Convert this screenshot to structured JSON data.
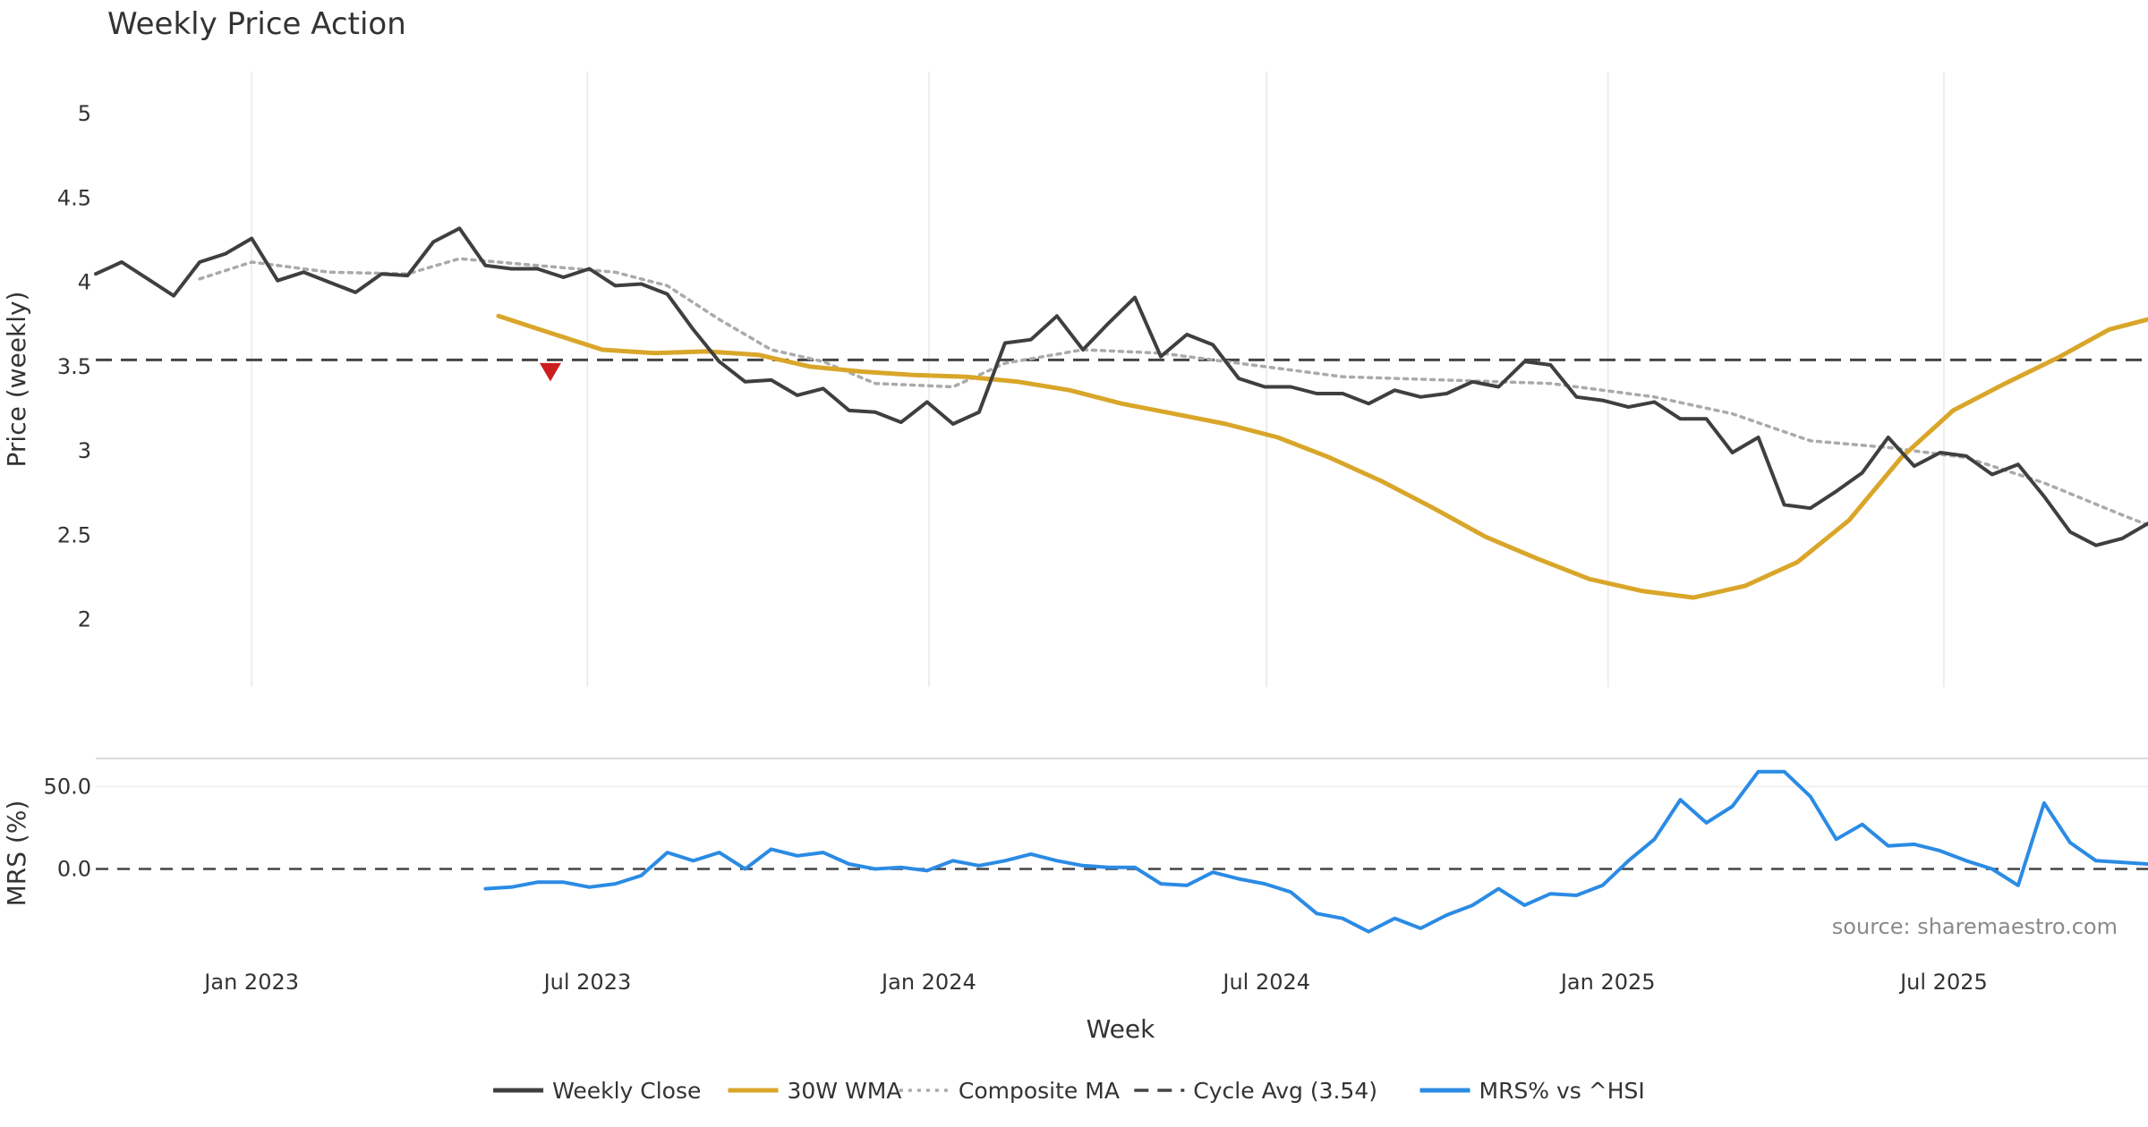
{
  "chart_data": {
    "type": "line",
    "title": "Weekly Price Action",
    "source": "source: sharemaestro.com",
    "xlabel": "Week",
    "x_ticks": [
      "Jan 2023",
      "Jul 2023",
      "Jan 2024",
      "Jul 2024",
      "Jan 2025",
      "Jul 2025"
    ],
    "x_tick_dates": [
      "2023-01-01",
      "2023-07-01",
      "2024-01-01",
      "2024-07-01",
      "2025-01-01",
      "2025-07-01"
    ],
    "x_range": [
      "2022-10-09",
      "2025-10-19"
    ],
    "grid": true,
    "legend_position": "bottom-center",
    "price_panel": {
      "ylabel": "Price (weekly)",
      "ylim": [
        1.6,
        5.25
      ],
      "y_ticks": [
        "2",
        "2.5",
        "3",
        "3.5",
        "4",
        "4.5",
        "5"
      ],
      "y_tick_values": [
        2,
        2.5,
        3,
        3.5,
        4,
        4.5,
        5
      ],
      "series": [
        {
          "name": "Weekly Close",
          "color": "#3f3f3f",
          "style": "solid",
          "points": [
            [
              "2022-10-09",
              4.05
            ],
            [
              "2022-10-23",
              4.12
            ],
            [
              "2022-11-06",
              4.02
            ],
            [
              "2022-11-20",
              3.92
            ],
            [
              "2022-12-04",
              4.12
            ],
            [
              "2022-12-18",
              4.17
            ],
            [
              "2023-01-01",
              4.26
            ],
            [
              "2023-01-15",
              4.01
            ],
            [
              "2023-01-29",
              4.06
            ],
            [
              "2023-02-12",
              4.0
            ],
            [
              "2023-02-26",
              3.94
            ],
            [
              "2023-03-12",
              4.05
            ],
            [
              "2023-03-26",
              4.04
            ],
            [
              "2023-04-09",
              4.24
            ],
            [
              "2023-04-23",
              4.32
            ],
            [
              "2023-05-07",
              4.1
            ],
            [
              "2023-05-21",
              4.08
            ],
            [
              "2023-06-04",
              4.08
            ],
            [
              "2023-06-18",
              4.03
            ],
            [
              "2023-07-02",
              4.08
            ],
            [
              "2023-07-16",
              3.98
            ],
            [
              "2023-07-30",
              3.99
            ],
            [
              "2023-08-13",
              3.93
            ],
            [
              "2023-08-27",
              3.72
            ],
            [
              "2023-09-10",
              3.53
            ],
            [
              "2023-09-24",
              3.41
            ],
            [
              "2023-10-08",
              3.42
            ],
            [
              "2023-10-22",
              3.33
            ],
            [
              "2023-11-05",
              3.37
            ],
            [
              "2023-11-19",
              3.24
            ],
            [
              "2023-12-03",
              3.23
            ],
            [
              "2023-12-17",
              3.17
            ],
            [
              "2023-12-31",
              3.29
            ],
            [
              "2024-01-14",
              3.16
            ],
            [
              "2024-01-28",
              3.23
            ],
            [
              "2024-02-11",
              3.64
            ],
            [
              "2024-02-25",
              3.66
            ],
            [
              "2024-03-10",
              3.8
            ],
            [
              "2024-03-24",
              3.6
            ],
            [
              "2024-04-07",
              3.76
            ],
            [
              "2024-04-21",
              3.91
            ],
            [
              "2024-05-05",
              3.56
            ],
            [
              "2024-05-19",
              3.69
            ],
            [
              "2024-06-02",
              3.63
            ],
            [
              "2024-06-16",
              3.43
            ],
            [
              "2024-06-30",
              3.38
            ],
            [
              "2024-07-14",
              3.38
            ],
            [
              "2024-07-28",
              3.34
            ],
            [
              "2024-08-11",
              3.34
            ],
            [
              "2024-08-25",
              3.28
            ],
            [
              "2024-09-08",
              3.36
            ],
            [
              "2024-09-22",
              3.32
            ],
            [
              "2024-10-06",
              3.34
            ],
            [
              "2024-10-20",
              3.41
            ],
            [
              "2024-11-03",
              3.38
            ],
            [
              "2024-11-17",
              3.53
            ],
            [
              "2024-12-01",
              3.51
            ],
            [
              "2024-12-15",
              3.32
            ],
            [
              "2024-12-29",
              3.3
            ],
            [
              "2025-01-12",
              3.26
            ],
            [
              "2025-01-26",
              3.29
            ],
            [
              "2025-02-09",
              3.19
            ],
            [
              "2025-02-23",
              3.19
            ],
            [
              "2025-03-09",
              2.99
            ],
            [
              "2025-03-23",
              3.08
            ],
            [
              "2025-04-06",
              2.68
            ],
            [
              "2025-04-20",
              2.66
            ],
            [
              "2025-05-04",
              2.76
            ],
            [
              "2025-05-18",
              2.87
            ],
            [
              "2025-06-01",
              3.08
            ],
            [
              "2025-06-15",
              2.91
            ],
            [
              "2025-06-29",
              2.99
            ],
            [
              "2025-07-13",
              2.97
            ],
            [
              "2025-07-27",
              2.86
            ],
            [
              "2025-08-10",
              2.92
            ],
            [
              "2025-08-24",
              2.73
            ],
            [
              "2025-09-07",
              2.52
            ],
            [
              "2025-09-21",
              2.44
            ],
            [
              "2025-10-05",
              2.48
            ],
            [
              "2025-10-19",
              2.57
            ]
          ]
        },
        {
          "name": "30W WMA",
          "color": "#d9a62a",
          "style": "solid",
          "points": [
            [
              "2023-05-14",
              3.8
            ],
            [
              "2023-06-11",
              3.7
            ],
            [
              "2023-07-09",
              3.6
            ],
            [
              "2023-08-06",
              3.58
            ],
            [
              "2023-09-03",
              3.59
            ],
            [
              "2023-10-01",
              3.57
            ],
            [
              "2023-10-29",
              3.5
            ],
            [
              "2023-11-26",
              3.47
            ],
            [
              "2023-12-24",
              3.45
            ],
            [
              "2024-01-21",
              3.44
            ],
            [
              "2024-02-18",
              3.41
            ],
            [
              "2024-03-17",
              3.36
            ],
            [
              "2024-04-14",
              3.28
            ],
            [
              "2024-05-12",
              3.22
            ],
            [
              "2024-06-09",
              3.16
            ],
            [
              "2024-07-07",
              3.08
            ],
            [
              "2024-08-04",
              2.96
            ],
            [
              "2024-09-01",
              2.82
            ],
            [
              "2024-09-29",
              2.66
            ],
            [
              "2024-10-27",
              2.49
            ],
            [
              "2024-11-24",
              2.36
            ],
            [
              "2024-12-22",
              2.24
            ],
            [
              "2025-01-19",
              2.17
            ],
            [
              "2025-02-16",
              2.13
            ],
            [
              "2025-03-16",
              2.2
            ],
            [
              "2025-04-13",
              2.34
            ],
            [
              "2025-05-11",
              2.59
            ],
            [
              "2025-06-08",
              2.96
            ],
            [
              "2025-07-06",
              3.24
            ],
            [
              "2025-08-03",
              3.4
            ],
            [
              "2025-08-31",
              3.55
            ],
            [
              "2025-09-28",
              3.72
            ],
            [
              "2025-10-19",
              3.78
            ]
          ]
        },
        {
          "name": "Composite MA",
          "color": "#aaaaaa",
          "style": "dotted",
          "points": [
            [
              "2022-12-04",
              4.02
            ],
            [
              "2023-01-01",
              4.12
            ],
            [
              "2023-02-12",
              4.06
            ],
            [
              "2023-03-26",
              4.05
            ],
            [
              "2023-04-23",
              4.14
            ],
            [
              "2023-06-04",
              4.1
            ],
            [
              "2023-07-16",
              4.06
            ],
            [
              "2023-08-13",
              3.98
            ],
            [
              "2023-09-10",
              3.78
            ],
            [
              "2023-10-08",
              3.6
            ],
            [
              "2023-11-05",
              3.53
            ],
            [
              "2023-12-03",
              3.4
            ],
            [
              "2024-01-14",
              3.38
            ],
            [
              "2024-02-11",
              3.52
            ],
            [
              "2024-03-24",
              3.6
            ],
            [
              "2024-05-05",
              3.58
            ],
            [
              "2024-06-16",
              3.52
            ],
            [
              "2024-08-11",
              3.44
            ],
            [
              "2024-10-06",
              3.42
            ],
            [
              "2024-12-01",
              3.4
            ],
            [
              "2025-01-26",
              3.32
            ],
            [
              "2025-03-09",
              3.22
            ],
            [
              "2025-04-20",
              3.06
            ],
            [
              "2025-06-01",
              3.02
            ],
            [
              "2025-07-13",
              2.96
            ],
            [
              "2025-08-24",
              2.81
            ],
            [
              "2025-10-05",
              2.62
            ],
            [
              "2025-10-19",
              2.56
            ]
          ]
        }
      ],
      "hlines": [
        {
          "name": "Cycle Avg (3.54)",
          "value": 3.54,
          "color": "#444444",
          "style": "dashed"
        }
      ],
      "markers": [
        {
          "type": "sell",
          "date": "2023-06-11",
          "value": 3.47,
          "color": "#cc1e1e"
        }
      ]
    },
    "mrs_panel": {
      "ylabel": "MRS (%)",
      "ylim": [
        -48,
        67
      ],
      "y_ticks": [
        "0.0",
        "50.0"
      ],
      "y_tick_values": [
        0,
        50
      ],
      "zero_line": {
        "value": 0,
        "color": "#444444",
        "style": "dashed"
      },
      "series": [
        {
          "name": "MRS% vs ^HSI",
          "color": "#2b8be4",
          "style": "solid",
          "points": [
            [
              "2023-05-07",
              -12
            ],
            [
              "2023-05-21",
              -11
            ],
            [
              "2023-06-04",
              -8
            ],
            [
              "2023-06-18",
              -8
            ],
            [
              "2023-07-02",
              -11
            ],
            [
              "2023-07-16",
              -9
            ],
            [
              "2023-07-30",
              -4
            ],
            [
              "2023-08-13",
              10
            ],
            [
              "2023-08-27",
              5
            ],
            [
              "2023-09-10",
              10
            ],
            [
              "2023-09-24",
              0
            ],
            [
              "2023-10-08",
              12
            ],
            [
              "2023-10-22",
              8
            ],
            [
              "2023-11-05",
              10
            ],
            [
              "2023-11-19",
              3
            ],
            [
              "2023-12-03",
              0
            ],
            [
              "2023-12-17",
              1
            ],
            [
              "2023-12-31",
              -1
            ],
            [
              "2024-01-14",
              5
            ],
            [
              "2024-01-28",
              2
            ],
            [
              "2024-02-11",
              5
            ],
            [
              "2024-02-25",
              9
            ],
            [
              "2024-03-10",
              5
            ],
            [
              "2024-03-24",
              2
            ],
            [
              "2024-04-07",
              1
            ],
            [
              "2024-04-21",
              1
            ],
            [
              "2024-05-05",
              -9
            ],
            [
              "2024-05-19",
              -10
            ],
            [
              "2024-06-02",
              -2
            ],
            [
              "2024-06-16",
              -6
            ],
            [
              "2024-06-30",
              -9
            ],
            [
              "2024-07-14",
              -14
            ],
            [
              "2024-07-28",
              -27
            ],
            [
              "2024-08-11",
              -30
            ],
            [
              "2024-08-25",
              -38
            ],
            [
              "2024-09-08",
              -30
            ],
            [
              "2024-09-22",
              -36
            ],
            [
              "2024-10-06",
              -28
            ],
            [
              "2024-10-20",
              -22
            ],
            [
              "2024-11-03",
              -12
            ],
            [
              "2024-11-17",
              -22
            ],
            [
              "2024-12-01",
              -15
            ],
            [
              "2024-12-15",
              -16
            ],
            [
              "2024-12-29",
              -10
            ],
            [
              "2025-01-12",
              5
            ],
            [
              "2025-01-26",
              18
            ],
            [
              "2025-02-09",
              42
            ],
            [
              "2025-02-23",
              28
            ],
            [
              "2025-03-09",
              38
            ],
            [
              "2025-03-23",
              59
            ],
            [
              "2025-04-06",
              59
            ],
            [
              "2025-04-20",
              44
            ],
            [
              "2025-05-04",
              18
            ],
            [
              "2025-05-18",
              27
            ],
            [
              "2025-06-01",
              14
            ],
            [
              "2025-06-15",
              15
            ],
            [
              "2025-06-29",
              11
            ],
            [
              "2025-07-13",
              5
            ],
            [
              "2025-07-27",
              0
            ],
            [
              "2025-08-10",
              -10
            ],
            [
              "2025-08-24",
              40
            ],
            [
              "2025-09-07",
              16
            ],
            [
              "2025-09-21",
              5
            ],
            [
              "2025-10-05",
              4
            ],
            [
              "2025-10-19",
              3
            ]
          ]
        }
      ]
    },
    "legend": [
      {
        "name": "Weekly Close",
        "color": "#3f3f3f",
        "style": "solid"
      },
      {
        "name": "30W WMA",
        "color": "#d9a62a",
        "style": "solid"
      },
      {
        "name": "Composite MA",
        "color": "#aaaaaa",
        "style": "dotted"
      },
      {
        "name": "Cycle Avg (3.54)",
        "color": "#444444",
        "style": "dashed"
      },
      {
        "name": "MRS% vs ^HSI",
        "color": "#2b8be4",
        "style": "solid"
      }
    ]
  }
}
